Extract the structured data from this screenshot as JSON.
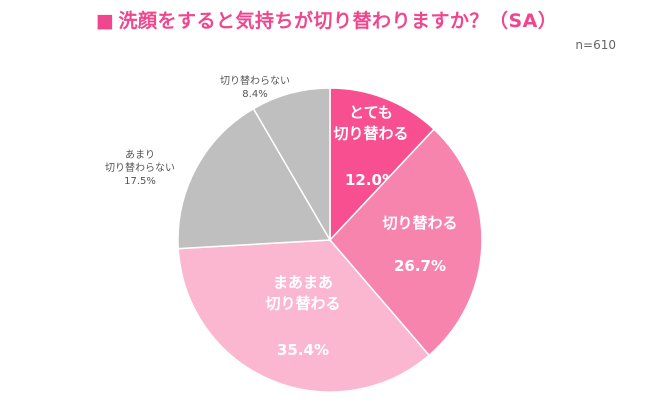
{
  "title_mark": "■",
  "title": "洗顔をすると気持ちが切り替わりますか？（SA）",
  "sample_size": "n=610",
  "chart_data": {
    "type": "pie",
    "title": "洗顔をすると気持ちが切り替わりますか？（SA）",
    "slices": [
      {
        "label": [
          "とても",
          "切り替わる"
        ],
        "value": 12.0,
        "value_text": "12.0%",
        "color": "#f74f8f",
        "label_inside": true
      },
      {
        "label": [
          "切り替わる"
        ],
        "value": 26.7,
        "value_text": "26.7%",
        "color": "#f784ad",
        "label_inside": true
      },
      {
        "label": [
          "まあまあ",
          "切り替わる"
        ],
        "value": 35.4,
        "value_text": "35.4%",
        "color": "#fbb7cf",
        "label_inside": true
      },
      {
        "label": [
          "あまり",
          "切り替わらない"
        ],
        "value": 17.5,
        "value_text": "17.5%",
        "color": "#bfbfbf",
        "label_inside": false
      },
      {
        "label": [
          "切り替わらない"
        ],
        "value": 8.4,
        "value_text": "8.4%",
        "color": "#bfbfbf",
        "label_inside": false
      }
    ],
    "start_angle": "12 o'clock",
    "direction": "clockwise"
  }
}
